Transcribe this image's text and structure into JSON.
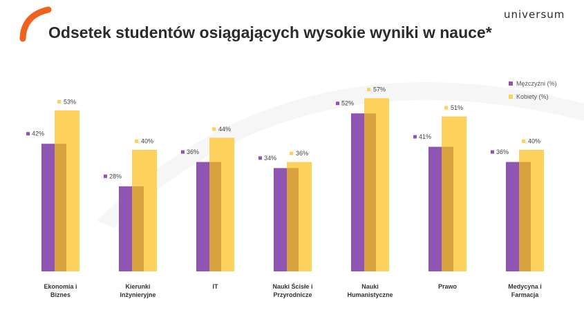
{
  "header": {
    "title": "Odsetek studentów osiągających wysokie wyniki w nauce*",
    "brand": "universum"
  },
  "colors": {
    "men": "#8e55b2",
    "women": "#fdd25c",
    "overlap": "#d8a33f",
    "accent": "#f0611e"
  },
  "chart_data": {
    "type": "bar",
    "categories": [
      [
        "Ekonomia i",
        "Biznes"
      ],
      [
        "Kierunki",
        "Inżynieryjne"
      ],
      [
        "IT"
      ],
      [
        "Nauki Ścisłe i",
        "Przyrodnicze"
      ],
      [
        "Nauki",
        "Humanistyczne"
      ],
      [
        "Prawo"
      ],
      [
        "Medycyna i",
        "Farmacja"
      ]
    ],
    "series": [
      {
        "name": "Mężczyźni (%)",
        "values": [
          42,
          28,
          36,
          34,
          52,
          41,
          36
        ],
        "labels": [
          "42%",
          "28%",
          "36%",
          "34%",
          "52%",
          "41%",
          "36%"
        ]
      },
      {
        "name": "Kobiety (%)",
        "values": [
          53,
          40,
          44,
          36,
          57,
          51,
          40
        ],
        "labels": [
          "53%",
          "40%",
          "44%",
          "36%",
          "57%",
          "51%",
          "40%"
        ]
      }
    ],
    "ylim": [
      0,
      65
    ],
    "grid": false,
    "legend_position": "top-right"
  }
}
